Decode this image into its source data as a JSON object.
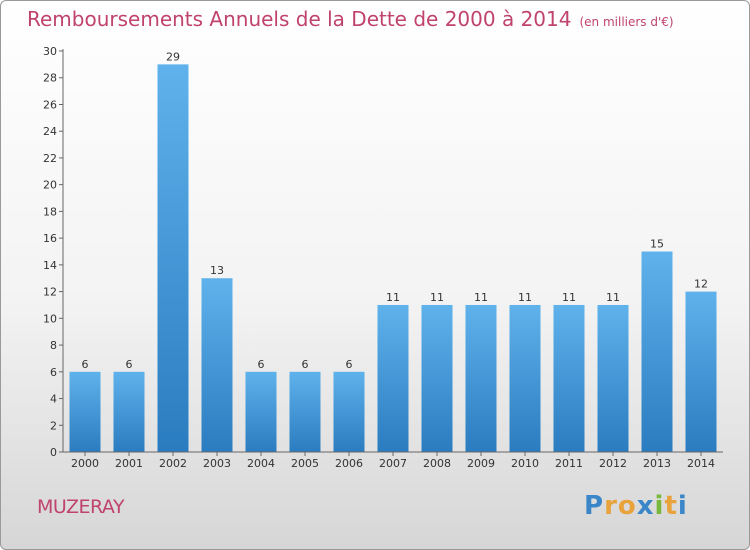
{
  "title": "Remboursements Annuels de la Dette de 2000 à 2014",
  "unit_label": "(en milliers d'€)",
  "commune": "MUZERAY",
  "logo": {
    "letters": [
      "P",
      "r",
      "o",
      "x",
      "i",
      "t",
      "i"
    ],
    "colors": [
      "#3a86c8",
      "#e8a33d",
      "#e8a33d",
      "#3a86c8",
      "#79b83a",
      "#e8a33d",
      "#3a86c8"
    ]
  },
  "colors": {
    "title": "#c0436d",
    "bar_top": "#5fb2eb",
    "bar_bottom": "#2a7cc0",
    "axis": "#666666"
  },
  "chart_data": {
    "type": "bar",
    "title": "Remboursements Annuels de la Dette de 2000 à 2014",
    "xlabel": "",
    "ylabel": "en milliers d'€",
    "categories": [
      "2000",
      "2001",
      "2002",
      "2003",
      "2004",
      "2005",
      "2006",
      "2007",
      "2008",
      "2009",
      "2010",
      "2011",
      "2012",
      "2013",
      "2014"
    ],
    "values": [
      6,
      6,
      29,
      13,
      6,
      6,
      6,
      11,
      11,
      11,
      11,
      11,
      11,
      15,
      12
    ],
    "ylim": [
      0,
      30
    ],
    "yticks": [
      0,
      2,
      4,
      6,
      8,
      10,
      12,
      14,
      16,
      18,
      20,
      22,
      24,
      26,
      28,
      30
    ],
    "grid": false,
    "legend": "none"
  }
}
